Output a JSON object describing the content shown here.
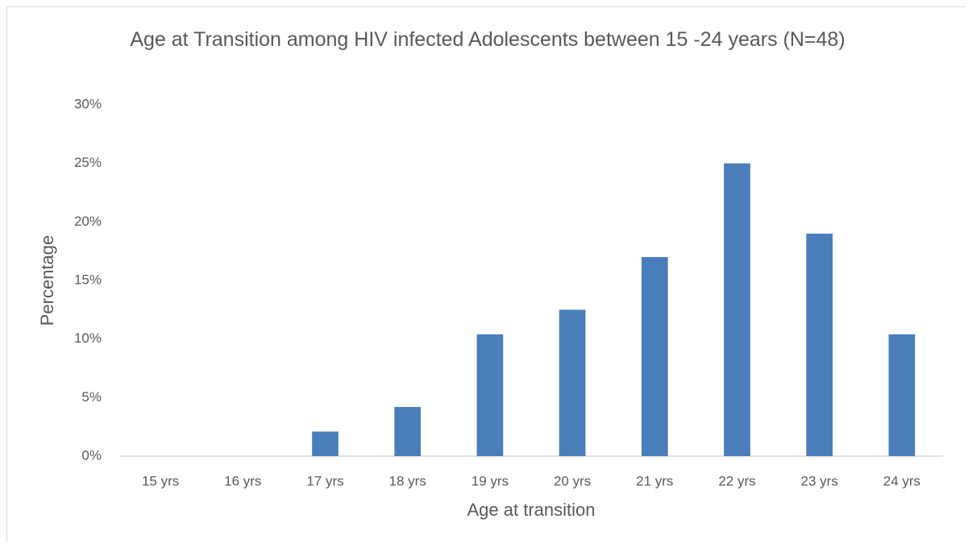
{
  "chart_data": {
    "type": "bar",
    "title": "Age at Transition among HIV infected Adolescents between 15 -24 years (N=48)",
    "x_label": "Age at transition",
    "y_label": "Percentage",
    "categories": [
      "15 yrs",
      "16 yrs",
      "17 yrs",
      "18 yrs",
      "19 yrs",
      "20 yrs",
      "21 yrs",
      "22 yrs",
      "23 yrs",
      "24 yrs"
    ],
    "values": [
      0,
      0,
      2.1,
      4.2,
      10.4,
      12.5,
      17,
      25,
      19,
      10.4
    ],
    "color": "#4a7ebb",
    "ylim": [
      0,
      30
    ],
    "yticks": [
      {
        "value": 0,
        "label": "0%"
      },
      {
        "value": 5,
        "label": "5%"
      },
      {
        "value": 10,
        "label": "10%"
      },
      {
        "value": 15,
        "label": "15%"
      },
      {
        "value": 20,
        "label": "20%"
      },
      {
        "value": 25,
        "label": "25%"
      },
      {
        "value": 30,
        "label": "30%"
      }
    ],
    "grid": false
  }
}
